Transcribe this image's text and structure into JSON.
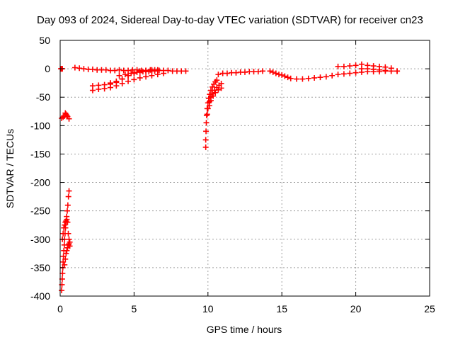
{
  "chart_data": {
    "type": "scatter",
    "title": "Day 093 of 2024, Sidereal Day-to-day VTEC variation (SDTVAR) for receiver cn23",
    "xlabel": "GPS time / hours",
    "ylabel": "SDTVAR / TECUs",
    "xlim": [
      0,
      25
    ],
    "ylim": [
      -400,
      50
    ],
    "xticks": [
      0,
      5,
      10,
      15,
      20,
      25
    ],
    "yticks": [
      50,
      0,
      -50,
      -100,
      -150,
      -200,
      -250,
      -300,
      -350,
      -400
    ],
    "grid": true,
    "marker": "+",
    "series_color": "#ff0000",
    "series": [
      {
        "name": "flat-start",
        "x": [
          0.05,
          0.1,
          0.15
        ],
        "y": [
          0,
          0,
          0
        ]
      },
      {
        "name": "early-arc",
        "x": [
          0.1,
          0.2,
          0.3,
          0.4,
          0.5,
          0.6,
          0.35,
          0.45
        ],
        "y": [
          -87,
          -85,
          -83,
          -80,
          -84,
          -88,
          -78,
          -82
        ]
      },
      {
        "name": "early-drop-1",
        "x": [
          0.1,
          0.12,
          0.14,
          0.16,
          0.18,
          0.2,
          0.22,
          0.25,
          0.28,
          0.3,
          0.33,
          0.36,
          0.4,
          0.44,
          0.48,
          0.52,
          0.56,
          0.6
        ],
        "y": [
          -390,
          -380,
          -370,
          -360,
          -350,
          -340,
          -330,
          -320,
          -310,
          -300,
          -290,
          -280,
          -270,
          -260,
          -250,
          -240,
          -225,
          -215
        ]
      },
      {
        "name": "early-drop-2",
        "x": [
          0.15,
          0.2,
          0.25,
          0.3,
          0.35,
          0.4,
          0.45,
          0.5,
          0.55,
          0.6,
          0.65
        ],
        "y": [
          -300,
          -290,
          -280,
          -275,
          -270,
          -268,
          -265,
          -270,
          -290,
          -300,
          -305
        ]
      },
      {
        "name": "early-drop-3",
        "x": [
          0.3,
          0.35,
          0.4,
          0.45,
          0.5,
          0.55,
          0.6,
          0.65
        ],
        "y": [
          -345,
          -335,
          -325,
          -320,
          -315,
          -310,
          -308,
          -312
        ]
      },
      {
        "name": "flat-1to8",
        "x": [
          1.0,
          1.3,
          1.6,
          1.9,
          2.2,
          2.5,
          2.8,
          3.1,
          3.4,
          3.7,
          4.0,
          4.3,
          4.6,
          4.9,
          5.2,
          5.5,
          5.8,
          6.1,
          6.4,
          6.7,
          7.0,
          7.3,
          7.6,
          7.9,
          8.2,
          8.5
        ],
        "y": [
          2,
          1,
          0,
          -1,
          -1,
          -2,
          -2,
          -2,
          -3,
          -3,
          -2,
          -3,
          -3,
          -2,
          -2,
          -3,
          -3,
          -2,
          -2,
          -3,
          -3,
          -3,
          -4,
          -4,
          -4,
          -4
        ]
      },
      {
        "name": "drift-band-a",
        "x": [
          2.2,
          2.6,
          3.0,
          3.4,
          3.8,
          4.2,
          4.6,
          5.0,
          5.4,
          5.8,
          6.2,
          6.6,
          7.0
        ],
        "y": [
          -38,
          -36,
          -35,
          -33,
          -30,
          -26,
          -22,
          -19,
          -16,
          -14,
          -12,
          -10,
          -8
        ]
      },
      {
        "name": "drift-band-b",
        "x": [
          2.2,
          2.6,
          3.0,
          3.4,
          3.8,
          4.2,
          4.6,
          5.0,
          5.4,
          5.8,
          6.2,
          6.6
        ],
        "y": [
          -30,
          -29,
          -28,
          -27,
          -24,
          -18,
          -12,
          -7,
          -4,
          -3,
          -2,
          -2
        ]
      },
      {
        "name": "drift-band-c",
        "x": [
          3.4,
          3.8,
          4.2,
          4.6,
          5.0,
          5.4,
          5.8,
          6.2,
          6.6
        ],
        "y": [
          -25,
          -22,
          -18,
          -12,
          -8,
          -6,
          -4,
          -3,
          -3
        ]
      },
      {
        "name": "drift-band-d",
        "x": [
          4.0,
          4.4,
          4.8,
          5.2,
          5.6,
          6.0,
          6.4
        ],
        "y": [
          -12,
          -10,
          -8,
          -6,
          -5,
          -5,
          -4
        ]
      },
      {
        "name": "dip-10h-a",
        "x": [
          9.85,
          9.85,
          9.87,
          9.89,
          9.91,
          9.95,
          10.0,
          10.05,
          10.12,
          10.2,
          10.3,
          10.4,
          10.5,
          10.6
        ],
        "y": [
          -138,
          -125,
          -110,
          -95,
          -82,
          -70,
          -60,
          -52,
          -45,
          -38,
          -32,
          -27,
          -23,
          -20
        ]
      },
      {
        "name": "dip-10h-b",
        "x": [
          9.95,
          10.0,
          10.1,
          10.2,
          10.3,
          10.45,
          10.6,
          10.75,
          10.9
        ],
        "y": [
          -80,
          -70,
          -58,
          -50,
          -44,
          -38,
          -33,
          -29,
          -26
        ]
      },
      {
        "name": "dip-10h-c",
        "x": [
          10.1,
          10.2,
          10.35,
          10.5,
          10.7,
          10.9
        ],
        "y": [
          -65,
          -56,
          -48,
          -42,
          -37,
          -34
        ]
      },
      {
        "name": "mid-flat",
        "x": [
          10.7,
          11.0,
          11.3,
          11.6,
          11.9,
          12.2,
          12.5,
          12.8,
          13.1,
          13.4,
          13.7
        ],
        "y": [
          -10,
          -8,
          -8,
          -7,
          -7,
          -6,
          -6,
          -5,
          -5,
          -5,
          -4
        ]
      },
      {
        "name": "bump-14h",
        "x": [
          14.2,
          14.4,
          14.6,
          14.8,
          15.0,
          15.2,
          15.4,
          15.6
        ],
        "y": [
          -4,
          -6,
          -8,
          -10,
          -11,
          -13,
          -15,
          -17
        ]
      },
      {
        "name": "late-band",
        "x": [
          16.0,
          16.4,
          16.8,
          17.2,
          17.6,
          18.0,
          18.4,
          18.8,
          19.2,
          19.6,
          20.0,
          20.4,
          20.8,
          21.2,
          21.6,
          22.0,
          22.4,
          22.8
        ],
        "y": [
          -18,
          -18,
          -17,
          -16,
          -15,
          -14,
          -12,
          -10,
          -9,
          -8,
          -7,
          -6,
          -5,
          -5,
          -5,
          -4,
          -4,
          -4
        ]
      },
      {
        "name": "late-high",
        "x": [
          18.8,
          19.2,
          19.6,
          20.0,
          20.4,
          20.8,
          21.2,
          21.6,
          22.0,
          22.4
        ],
        "y": [
          4,
          4,
          5,
          6,
          8,
          6,
          5,
          4,
          3,
          1
        ]
      },
      {
        "name": "late-mid",
        "x": [
          20.4,
          20.8,
          21.2,
          21.6,
          22.0,
          22.4,
          22.8
        ],
        "y": [
          0,
          0,
          -1,
          -2,
          -3,
          -4,
          -4
        ]
      }
    ]
  }
}
